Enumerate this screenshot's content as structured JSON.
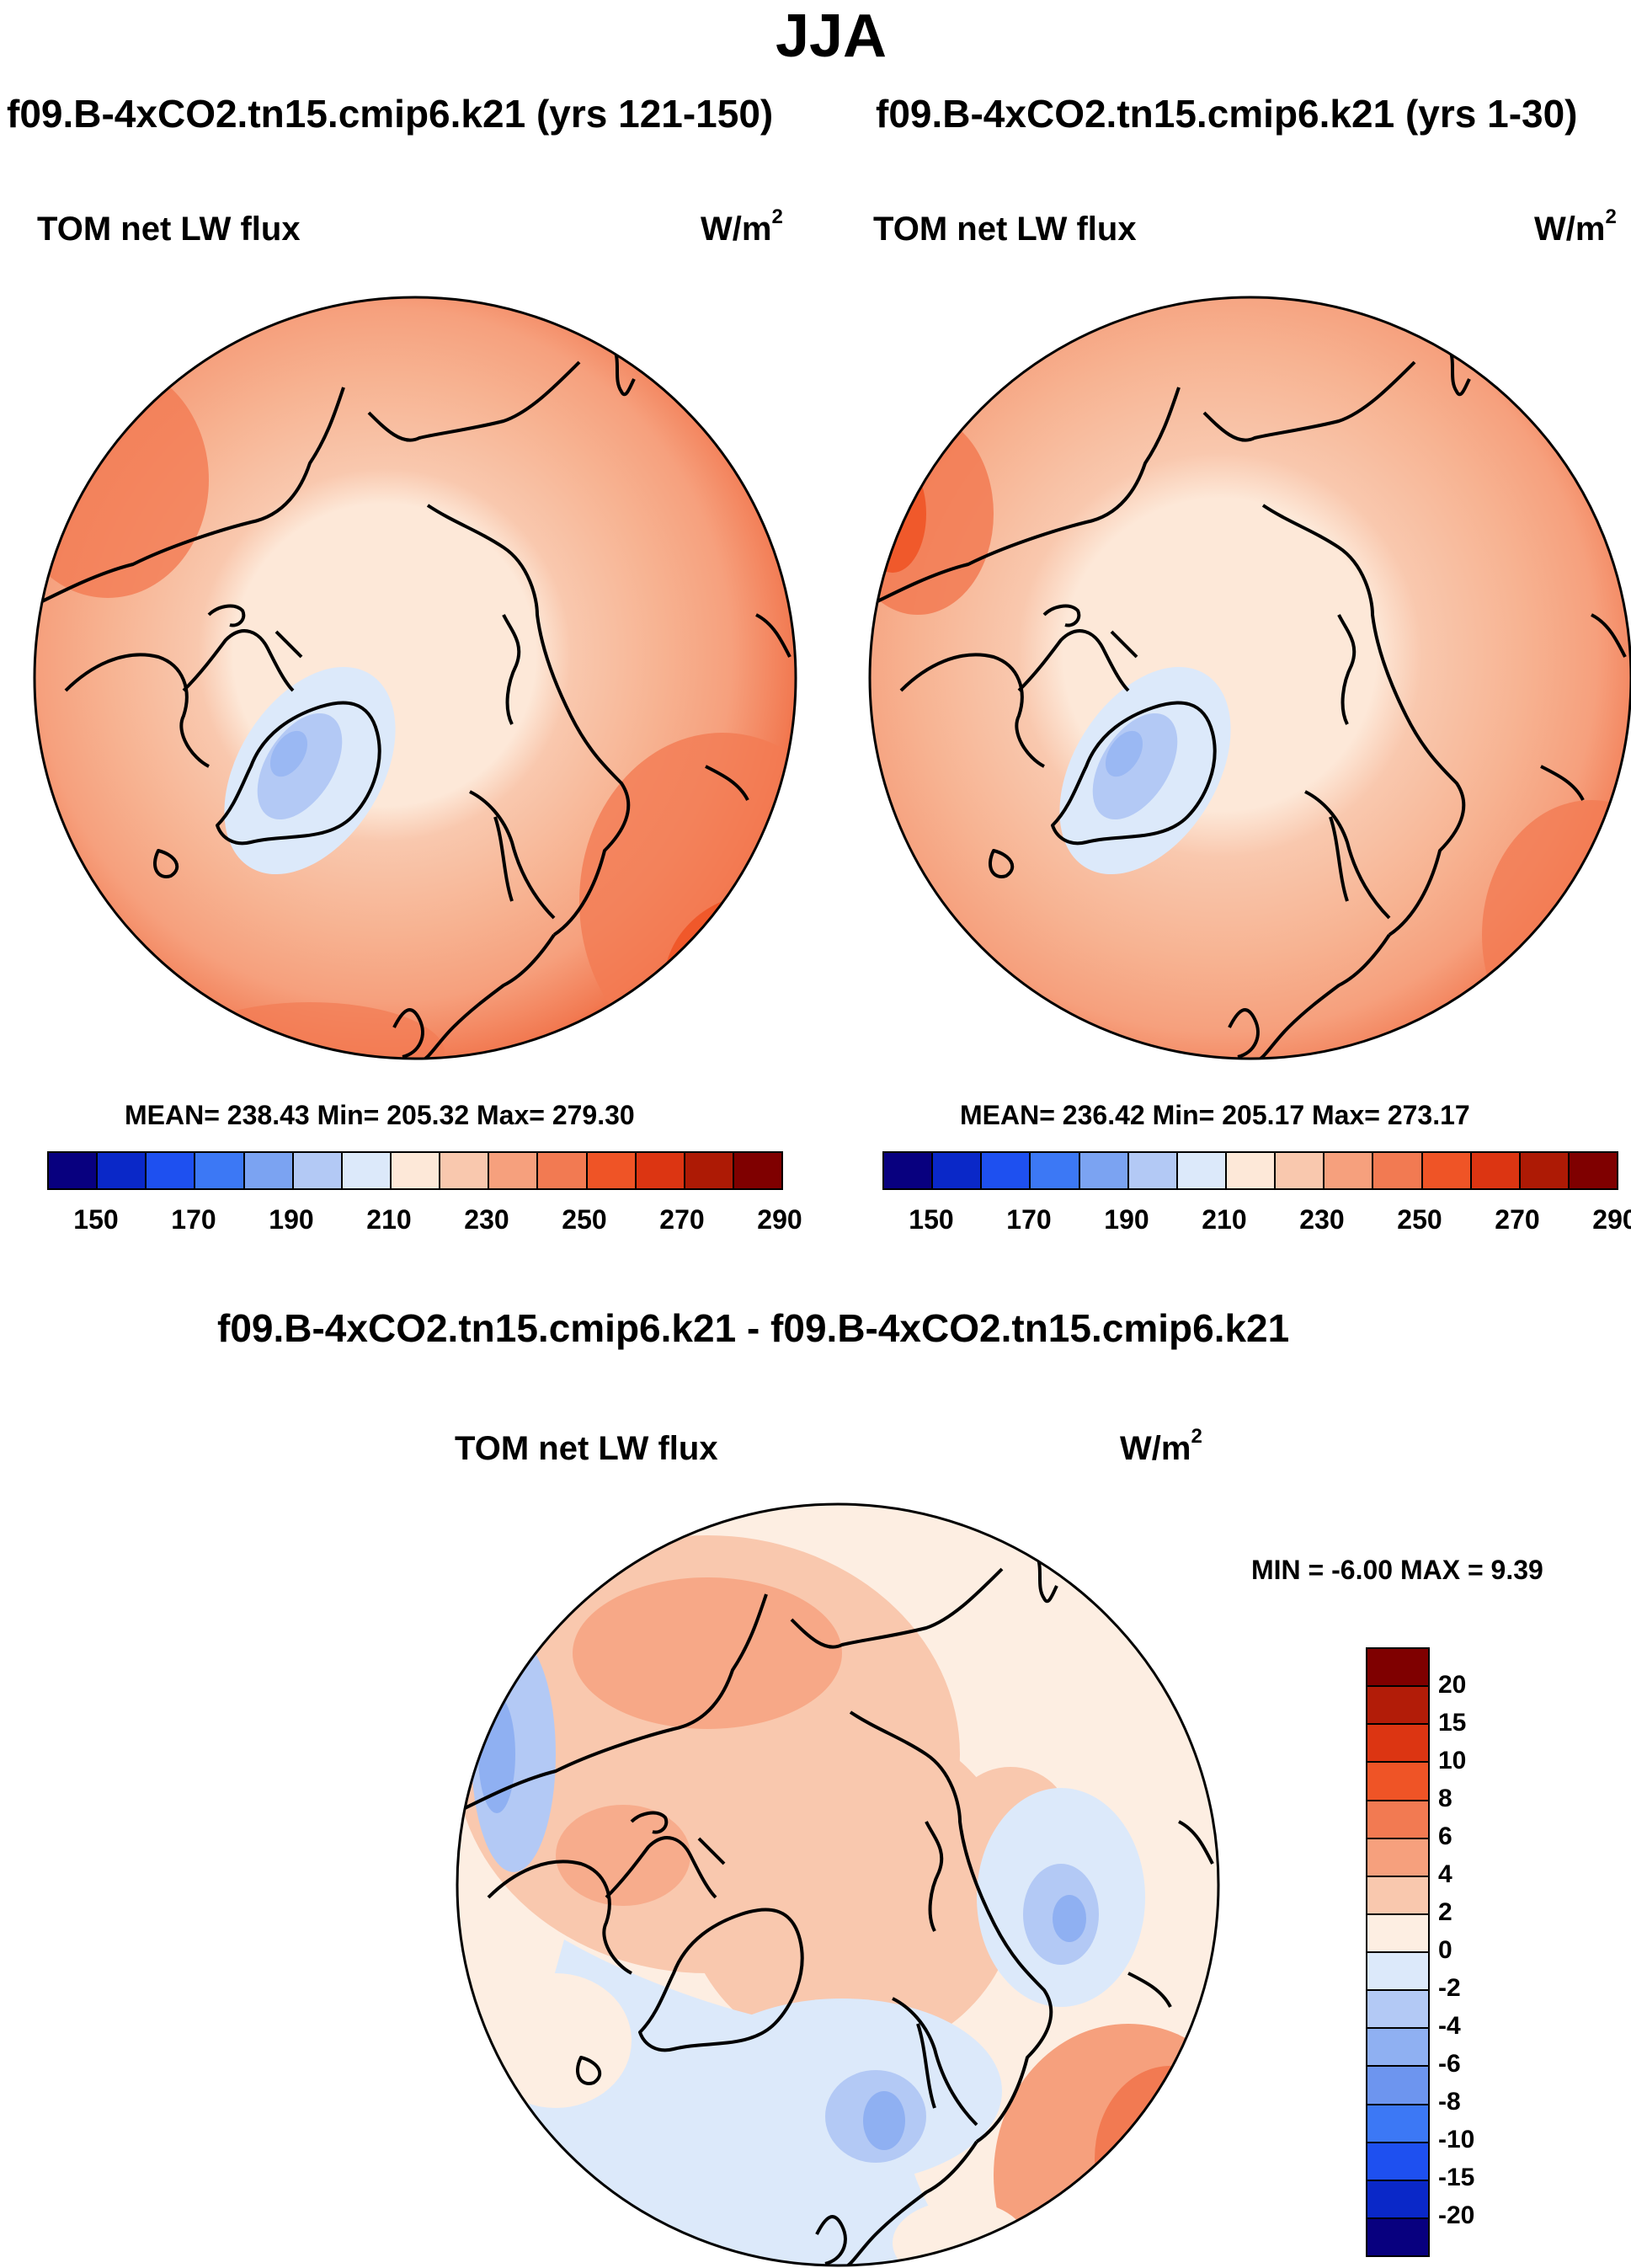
{
  "title": "JJA",
  "panels": [
    {
      "case": "f09.B-4xCO2.tn15.cmip6.k21 (yrs 121-150)",
      "variable": "TOM net LW flux",
      "units": "W/m",
      "units_exp": "2",
      "stats": "MEAN= 238.43  Min= 205.32  Max= 279.30"
    },
    {
      "case": "f09.B-4xCO2.tn15.cmip6.k21 (yrs 1-30)",
      "variable": "TOM net LW flux",
      "units": "W/m",
      "units_exp": "2",
      "stats": "MEAN= 236.42  Min= 205.17  Max= 273.17"
    }
  ],
  "abs_colorbar": {
    "colors": [
      "#08007f",
      "#0a28c8",
      "#1e50f0",
      "#3c78f5",
      "#7ba3f2",
      "#b3c9f5",
      "#dce9fa",
      "#fde8d8",
      "#f9c8ae",
      "#f6a07d",
      "#f27a52",
      "#ef5426",
      "#dc3512",
      "#ad1a05",
      "#7f0000"
    ],
    "labels": [
      "150",
      "170",
      "190",
      "210",
      "230",
      "250",
      "270",
      "290"
    ]
  },
  "diff": {
    "case": "f09.B-4xCO2.tn15.cmip6.k21 - f09.B-4xCO2.tn15.cmip6.k21",
    "variable": "TOM net LW flux",
    "units": "W/m",
    "units_exp": "2",
    "stats": "MIN =  -6.00 MAX =   9.39"
  },
  "diff_colorbar": {
    "colors": [
      "#7f0000",
      "#b21c08",
      "#dc3512",
      "#ef5426",
      "#f27a52",
      "#f6a07d",
      "#f9c8ae",
      "#fdeee2",
      "#dce9fa",
      "#b3c9f5",
      "#8fb0f2",
      "#6d95ef",
      "#3c78f5",
      "#1e50f0",
      "#0a28c8",
      "#08007f"
    ],
    "labels": [
      "20",
      "15",
      "10",
      "8",
      "6",
      "4",
      "2",
      "0",
      "-2",
      "-4",
      "-6",
      "-8",
      "-10",
      "-15",
      "-20"
    ]
  }
}
